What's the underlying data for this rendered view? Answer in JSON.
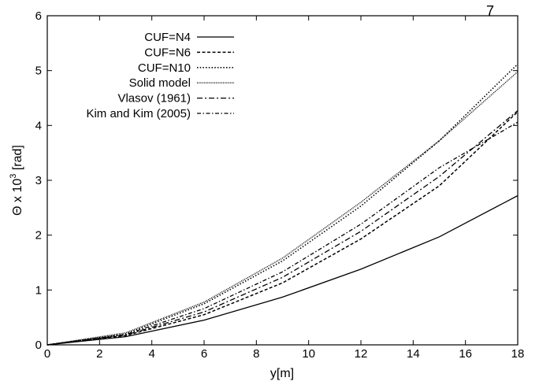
{
  "page": {
    "corner_label": "7"
  },
  "chart_data": {
    "type": "line",
    "title": "",
    "xlabel": "y[m]",
    "ylabel_parts": {
      "base": "Θ x 10",
      "exp": "3",
      "unit": " [rad]"
    },
    "xlim": [
      0,
      18
    ],
    "ylim": [
      0,
      6
    ],
    "xticks": [
      "0",
      "2",
      "4",
      "6",
      "8",
      "10",
      "12",
      "14",
      "16",
      "18"
    ],
    "yticks": [
      "0",
      "1",
      "2",
      "3",
      "4",
      "5",
      "6"
    ],
    "grid": false,
    "legend_position": "top-left",
    "x": [
      0,
      3,
      6,
      9,
      12,
      15,
      18
    ],
    "series": [
      {
        "name": "CUF=N4",
        "dash": "solid",
        "values": [
          0,
          0.15,
          0.45,
          0.87,
          1.38,
          1.97,
          2.72
        ]
      },
      {
        "name": "CUF=N6",
        "dash": "dashed",
        "values": [
          0,
          0.17,
          0.55,
          1.13,
          1.93,
          2.9,
          4.25
        ]
      },
      {
        "name": "CUF=N10",
        "dash": "dotted",
        "values": [
          0,
          0.2,
          0.75,
          1.53,
          2.53,
          3.72,
          5.12
        ]
      },
      {
        "name": "Solid model",
        "dash": "dense-dotted",
        "values": [
          0,
          0.22,
          0.78,
          1.58,
          2.6,
          3.72,
          4.98
        ]
      },
      {
        "name": "Vlasov (1961)",
        "dash": "dash-dot",
        "values": [
          0,
          0.18,
          0.6,
          1.23,
          2.07,
          3.07,
          4.27
        ]
      },
      {
        "name": "Kim and Kim (2005)",
        "dash": "dash-dot-fine",
        "values": [
          0,
          0.19,
          0.66,
          1.33,
          2.2,
          3.23,
          4.06
        ]
      }
    ]
  }
}
